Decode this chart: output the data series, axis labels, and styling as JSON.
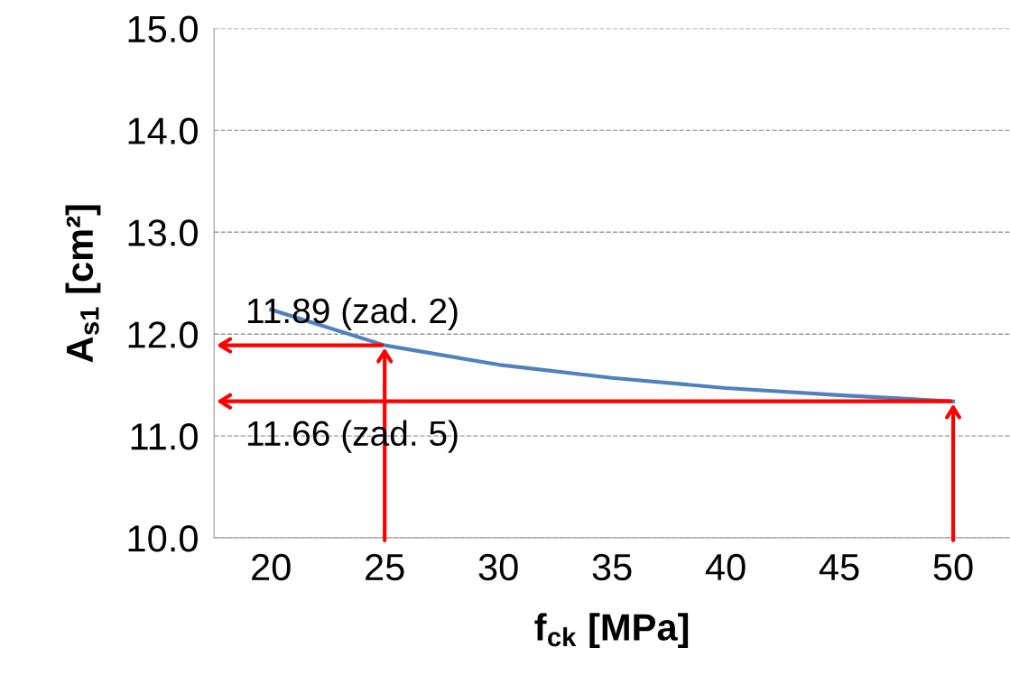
{
  "chart_data": {
    "type": "line",
    "xlabel": "f$_{ck}$ [MPa]",
    "ylabel": "A$_{s1}$ [cm²]",
    "categories": [
      "20",
      "25",
      "30",
      "35",
      "40",
      "45",
      "50"
    ],
    "series": [
      {
        "color": "#4f81bd",
        "values": [
          12.24,
          11.89,
          11.7,
          11.57,
          11.47,
          11.4,
          11.34
        ]
      }
    ],
    "ylim": [
      10.0,
      15.0
    ],
    "yticks": [
      {
        "value": 10,
        "label": "10.0"
      },
      {
        "value": 11,
        "label": "11.0"
      },
      {
        "value": 12,
        "label": "12.0"
      },
      {
        "value": 13,
        "label": "13.0"
      },
      {
        "value": 14,
        "label": "14.0"
      },
      {
        "value": 15,
        "label": "15.0"
      }
    ],
    "grid": "y",
    "marker": "none",
    "line_style": "solid",
    "annotations": [
      {
        "text": "11.89 (zad. 2)",
        "x": "25",
        "y": 11.89
      },
      {
        "text": "11.66 (zad. 5)",
        "x": "50",
        "y": 11.34
      }
    ]
  }
}
